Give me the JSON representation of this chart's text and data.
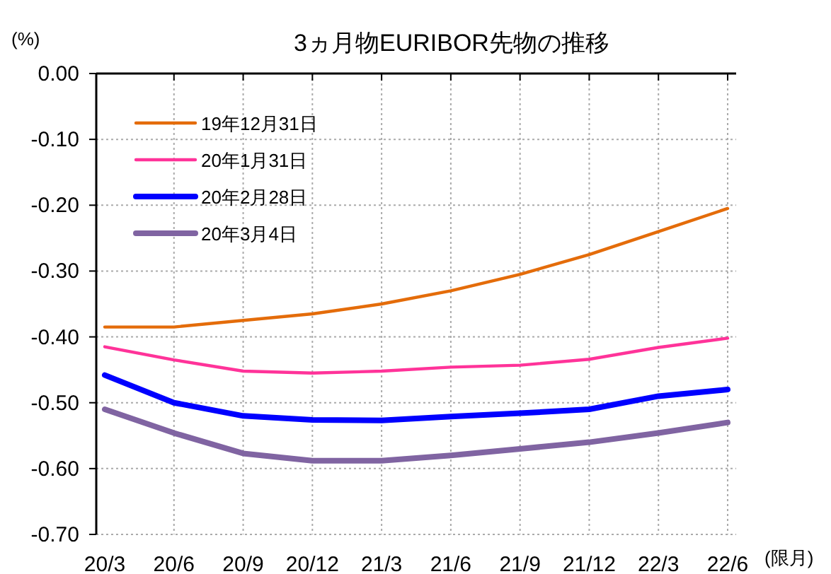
{
  "chart_data": {
    "type": "line",
    "title": "3ヵ月物EURIBOR先物の推移",
    "ylabel": "(%)",
    "xlabel": "(限月)",
    "categories": [
      "20/3",
      "20/6",
      "20/9",
      "20/12",
      "21/3",
      "21/6",
      "21/9",
      "21/12",
      "22/3",
      "22/6"
    ],
    "series": [
      {
        "name": "19年12月31日",
        "color": "#e46c0a",
        "values": [
          -0.385,
          -0.385,
          -0.375,
          -0.365,
          -0.35,
          -0.33,
          -0.305,
          -0.275,
          -0.24,
          -0.205
        ]
      },
      {
        "name": "20年1月31日",
        "color": "#ff3399",
        "values": [
          -0.415,
          -0.435,
          -0.452,
          -0.455,
          -0.452,
          -0.446,
          -0.443,
          -0.434,
          -0.416,
          -0.402
        ]
      },
      {
        "name": "20年2月28日",
        "color": "#0000ff",
        "values": [
          -0.458,
          -0.5,
          -0.52,
          -0.526,
          -0.527,
          -0.521,
          -0.516,
          -0.51,
          -0.49,
          -0.48
        ]
      },
      {
        "name": "20年3月4日",
        "color": "#8064a2",
        "values": [
          -0.51,
          -0.546,
          -0.577,
          -0.588,
          -0.588,
          -0.58,
          -0.57,
          -0.56,
          -0.546,
          -0.53
        ]
      }
    ],
    "ylim": [
      -0.7,
      0
    ],
    "yticks": [
      {
        "value": 0,
        "label": "0.00"
      },
      {
        "value": -0.1,
        "label": "-0.10"
      },
      {
        "value": -0.2,
        "label": "-0.20"
      },
      {
        "value": -0.3,
        "label": "-0.30"
      },
      {
        "value": -0.4,
        "label": "-0.40"
      },
      {
        "value": -0.5,
        "label": "-0.50"
      },
      {
        "value": -0.6,
        "label": "-0.60"
      },
      {
        "value": -0.7,
        "label": "-0.70"
      }
    ],
    "grid": true,
    "legend": "top left",
    "marker": "none",
    "line_style": "solid"
  }
}
